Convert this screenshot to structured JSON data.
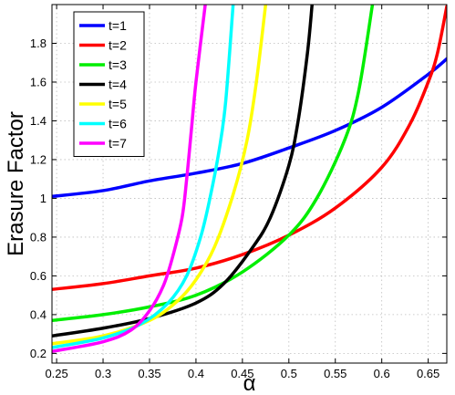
{
  "chart_data": {
    "type": "line",
    "title": "",
    "xlabel": "α",
    "ylabel": "Erasure Factor",
    "xlim": [
      0.245,
      0.67
    ],
    "ylim": [
      0.15,
      2.0
    ],
    "xticks": [
      0.25,
      0.3,
      0.35,
      0.4,
      0.45,
      0.5,
      0.55,
      0.6,
      0.65
    ],
    "xtick_labels": [
      "0.25",
      "0.3",
      "0.35",
      "0.4",
      "0.45",
      "0.5",
      "0.55",
      "0.6",
      "0.65"
    ],
    "yticks": [
      0.2,
      0.4,
      0.6,
      0.8,
      1.0,
      1.2,
      1.4,
      1.6,
      1.8
    ],
    "ytick_labels": [
      "0.2",
      "0.4",
      "0.6",
      "0.8",
      "1",
      "1.2",
      "1.4",
      "1.6",
      "1.8"
    ],
    "grid": true,
    "legend_position": "top-left",
    "series": [
      {
        "name": "t=1",
        "color": "#0000ff",
        "points": [
          [
            0.245,
            1.01
          ],
          [
            0.3,
            1.04
          ],
          [
            0.35,
            1.09
          ],
          [
            0.4,
            1.13
          ],
          [
            0.45,
            1.18
          ],
          [
            0.5,
            1.26
          ],
          [
            0.55,
            1.35
          ],
          [
            0.6,
            1.47
          ],
          [
            0.65,
            1.64
          ],
          [
            0.67,
            1.72
          ]
        ]
      },
      {
        "name": "t=2",
        "color": "#ff0000",
        "points": [
          [
            0.245,
            0.53
          ],
          [
            0.3,
            0.56
          ],
          [
            0.35,
            0.6
          ],
          [
            0.4,
            0.64
          ],
          [
            0.45,
            0.71
          ],
          [
            0.5,
            0.81
          ],
          [
            0.55,
            0.95
          ],
          [
            0.6,
            1.16
          ],
          [
            0.63,
            1.38
          ],
          [
            0.65,
            1.6
          ],
          [
            0.66,
            1.75
          ],
          [
            0.67,
            1.99
          ]
        ]
      },
      {
        "name": "t=3",
        "color": "#00ee00",
        "points": [
          [
            0.245,
            0.37
          ],
          [
            0.3,
            0.4
          ],
          [
            0.35,
            0.44
          ],
          [
            0.4,
            0.5
          ],
          [
            0.45,
            0.62
          ],
          [
            0.5,
            0.81
          ],
          [
            0.53,
            1.0
          ],
          [
            0.56,
            1.3
          ],
          [
            0.575,
            1.55
          ],
          [
            0.59,
            2.0
          ]
        ]
      },
      {
        "name": "t=4",
        "color": "#000000",
        "points": [
          [
            0.245,
            0.29
          ],
          [
            0.3,
            0.33
          ],
          [
            0.35,
            0.38
          ],
          [
            0.4,
            0.46
          ],
          [
            0.43,
            0.56
          ],
          [
            0.46,
            0.74
          ],
          [
            0.48,
            0.9
          ],
          [
            0.5,
            1.17
          ],
          [
            0.51,
            1.4
          ],
          [
            0.52,
            1.75
          ],
          [
            0.525,
            2.0
          ]
        ]
      },
      {
        "name": "t=5",
        "color": "#ffff00",
        "points": [
          [
            0.245,
            0.25
          ],
          [
            0.3,
            0.29
          ],
          [
            0.35,
            0.37
          ],
          [
            0.38,
            0.47
          ],
          [
            0.4,
            0.58
          ],
          [
            0.42,
            0.75
          ],
          [
            0.44,
            1.02
          ],
          [
            0.455,
            1.3
          ],
          [
            0.465,
            1.6
          ],
          [
            0.475,
            2.0
          ]
        ]
      },
      {
        "name": "t=6",
        "color": "#00ffff",
        "points": [
          [
            0.245,
            0.23
          ],
          [
            0.3,
            0.28
          ],
          [
            0.34,
            0.35
          ],
          [
            0.37,
            0.46
          ],
          [
            0.39,
            0.6
          ],
          [
            0.405,
            0.8
          ],
          [
            0.415,
            1.0
          ],
          [
            0.425,
            1.25
          ],
          [
            0.432,
            1.5
          ],
          [
            0.44,
            2.0
          ]
        ]
      },
      {
        "name": "t=7",
        "color": "#ff00ff",
        "points": [
          [
            0.245,
            0.21
          ],
          [
            0.3,
            0.26
          ],
          [
            0.33,
            0.32
          ],
          [
            0.35,
            0.42
          ],
          [
            0.365,
            0.55
          ],
          [
            0.375,
            0.7
          ],
          [
            0.385,
            0.9
          ],
          [
            0.39,
            1.1
          ],
          [
            0.395,
            1.35
          ],
          [
            0.4,
            1.6
          ],
          [
            0.41,
            2.0
          ]
        ]
      }
    ]
  }
}
